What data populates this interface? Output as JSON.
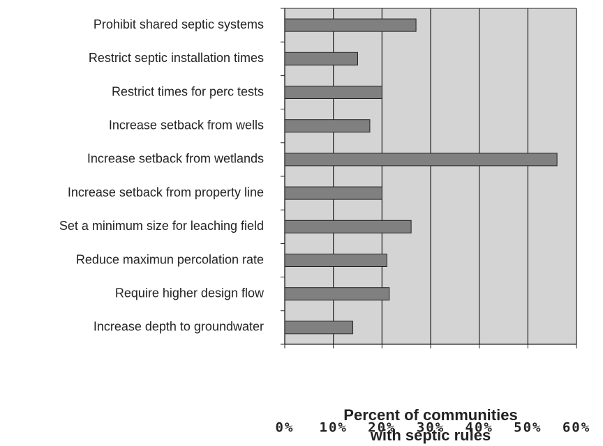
{
  "chart_data": {
    "type": "bar",
    "orientation": "horizontal",
    "categories": [
      "Prohibit shared septic systems",
      "Restrict septic installation times",
      "Restrict times for perc tests",
      "Increase setback from wells",
      "Increase setback from wetlands",
      "Increase setback from property line",
      "Set a minimum size for leaching field",
      "Reduce maximun percolation rate",
      "Require higher design flow",
      "Increase depth to groundwater"
    ],
    "values": [
      27,
      15,
      20,
      17.5,
      56,
      20,
      26,
      21,
      21.5,
      14
    ],
    "color": "#808080",
    "xlim": [
      0,
      60
    ],
    "xticks": [
      {
        "value": 0,
        "label": "0%"
      },
      {
        "value": 10,
        "label": "10%"
      },
      {
        "value": 20,
        "label": "20%"
      },
      {
        "value": 30,
        "label": "30%"
      },
      {
        "value": 40,
        "label": "40%"
      },
      {
        "value": 50,
        "label": "50%"
      },
      {
        "value": 60,
        "label": "60%"
      }
    ],
    "grid": true,
    "x_label": [
      "Percent of communities",
      "with septic rules"
    ]
  }
}
